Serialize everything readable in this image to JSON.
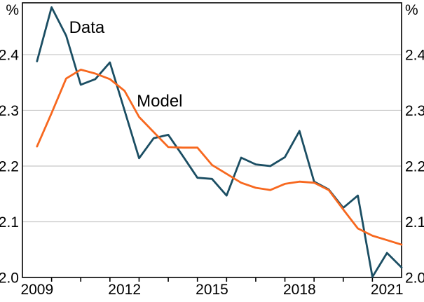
{
  "chart_data": {
    "type": "line",
    "unit_left": "%",
    "unit_right": "%",
    "x": [
      2009.0,
      2009.5,
      2010.0,
      2010.5,
      2011.0,
      2011.5,
      2012.0,
      2012.5,
      2013.0,
      2013.5,
      2014.0,
      2014.5,
      2015.0,
      2015.5,
      2016.0,
      2016.5,
      2017.0,
      2017.5,
      2018.0,
      2018.5,
      2019.0,
      2019.5,
      2020.0,
      2020.5,
      2021.0,
      2021.5
    ],
    "series": [
      {
        "name": "Data",
        "color": "#1b4e63",
        "values": [
          2.388,
          2.485,
          2.434,
          2.346,
          2.356,
          2.386,
          2.3,
          2.214,
          2.25,
          2.256,
          2.218,
          2.179,
          2.177,
          2.147,
          2.215,
          2.203,
          2.2,
          2.216,
          2.263,
          2.172,
          2.158,
          2.125,
          2.147,
          2.001,
          2.044,
          2.018
        ]
      },
      {
        "name": "Model",
        "color": "#f7681f",
        "values": [
          2.235,
          2.295,
          2.357,
          2.373,
          2.366,
          2.356,
          2.335,
          2.288,
          2.261,
          2.234,
          2.233,
          2.233,
          2.202,
          2.186,
          2.17,
          2.161,
          2.157,
          2.168,
          2.172,
          2.17,
          2.157,
          2.122,
          2.088,
          2.075,
          2.067,
          2.059
        ]
      }
    ],
    "annotations": [
      {
        "text": "Data",
        "x": 2010.1,
        "y": 2.439,
        "color": "#1b4e63"
      },
      {
        "text": "Model",
        "x": 2012.42,
        "y": 2.307,
        "color": "#f7681f"
      }
    ],
    "xlim": [
      2008.5,
      2021.5
    ],
    "ylim": [
      2.0,
      2.493
    ],
    "x_tick_marks": [
      2009.5,
      2010.5,
      2011.5,
      2012.5,
      2013.5,
      2014.5,
      2015.5,
      2016.5,
      2017.5,
      2018.5,
      2019.5,
      2020.5
    ],
    "x_tick_labels": [
      {
        "label": "2009",
        "x": 2009
      },
      {
        "label": "2012",
        "x": 2012
      },
      {
        "label": "2015",
        "x": 2015
      },
      {
        "label": "2018",
        "x": 2018
      },
      {
        "label": "2021",
        "x": 2021
      }
    ],
    "y_gridlines": [
      2.1,
      2.2,
      2.3,
      2.4
    ],
    "y_tick_labels": [
      "2.0",
      "2.1",
      "2.2",
      "2.3",
      "2.4"
    ],
    "grid": "horizontal",
    "legend_position": "inline-labels",
    "axis_color": "#000000",
    "gridline_color": "#c8c8c8"
  }
}
